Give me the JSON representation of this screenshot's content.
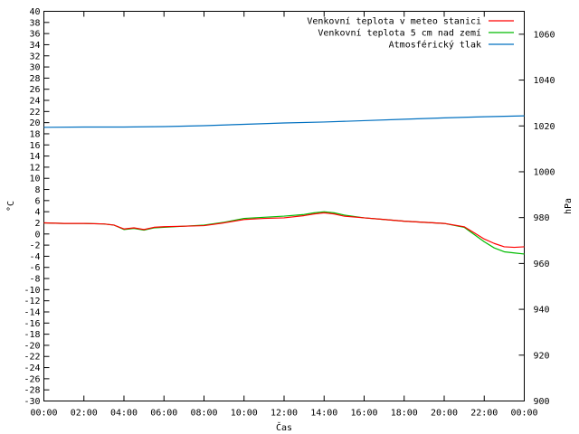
{
  "chart_data": {
    "type": "line",
    "xlabel": "Čas",
    "ylabel_left": "°C",
    "ylabel_right": "hPa",
    "x_tick_labels": [
      "00:00",
      "02:00",
      "04:00",
      "06:00",
      "08:00",
      "10:00",
      "12:00",
      "14:00",
      "16:00",
      "18:00",
      "20:00",
      "22:00",
      "00:00"
    ],
    "xlim_hours": [
      0,
      24
    ],
    "ylim_left": [
      -30,
      40
    ],
    "yticks_left_step": 2,
    "ylim_right": [
      900,
      1070
    ],
    "yticks_right": [
      900,
      920,
      940,
      960,
      980,
      1000,
      1020,
      1040,
      1060
    ],
    "legend_position": "top-right",
    "grid": false,
    "series": [
      {
        "name": "Venkovní teplota v meteo stanici",
        "axis": "left",
        "color": "#ff0000",
        "x": [
          0,
          1,
          2,
          3,
          3.5,
          4,
          4.5,
          5,
          5.5,
          6,
          7,
          8,
          9,
          10,
          11,
          12,
          13,
          13.5,
          14,
          14.5,
          15,
          16,
          17,
          18,
          19,
          20,
          21,
          21.5,
          22,
          22.5,
          23,
          23.5,
          24
        ],
        "values": [
          2.0,
          1.9,
          1.9,
          1.8,
          1.6,
          0.9,
          1.1,
          0.8,
          1.2,
          1.3,
          1.4,
          1.5,
          2.0,
          2.6,
          2.8,
          2.9,
          3.3,
          3.6,
          3.8,
          3.6,
          3.2,
          2.9,
          2.6,
          2.3,
          2.1,
          1.9,
          1.3,
          0.2,
          -0.9,
          -1.7,
          -2.3,
          -2.4,
          -2.3
        ]
      },
      {
        "name": "Venkovní teplota 5 cm nad zemí",
        "axis": "left",
        "color": "#00bb00",
        "x": [
          0,
          1,
          2,
          3,
          3.5,
          4,
          4.5,
          5,
          5.5,
          6,
          7,
          8,
          9,
          10,
          11,
          12,
          13,
          13.5,
          14,
          14.5,
          15,
          16,
          17,
          18,
          19,
          20,
          21,
          21.5,
          22,
          22.5,
          23,
          23.5,
          24
        ],
        "values": [
          2.0,
          1.9,
          1.9,
          1.8,
          1.6,
          0.8,
          1.0,
          0.7,
          1.1,
          1.2,
          1.4,
          1.6,
          2.1,
          2.8,
          3.0,
          3.2,
          3.5,
          3.8,
          4.0,
          3.8,
          3.4,
          2.9,
          2.6,
          2.3,
          2.1,
          1.9,
          1.2,
          -0.1,
          -1.4,
          -2.5,
          -3.2,
          -3.4,
          -3.6
        ]
      },
      {
        "name": "Atmosférický tlak",
        "axis": "right",
        "color": "#0070c0",
        "x": [
          0,
          2,
          4,
          6,
          8,
          10,
          12,
          14,
          16,
          18,
          20,
          22,
          24
        ],
        "values": [
          1019.4,
          1019.5,
          1019.5,
          1019.7,
          1020.1,
          1020.7,
          1021.3,
          1021.7,
          1022.3,
          1022.9,
          1023.5,
          1024.0,
          1024.4
        ]
      }
    ]
  }
}
